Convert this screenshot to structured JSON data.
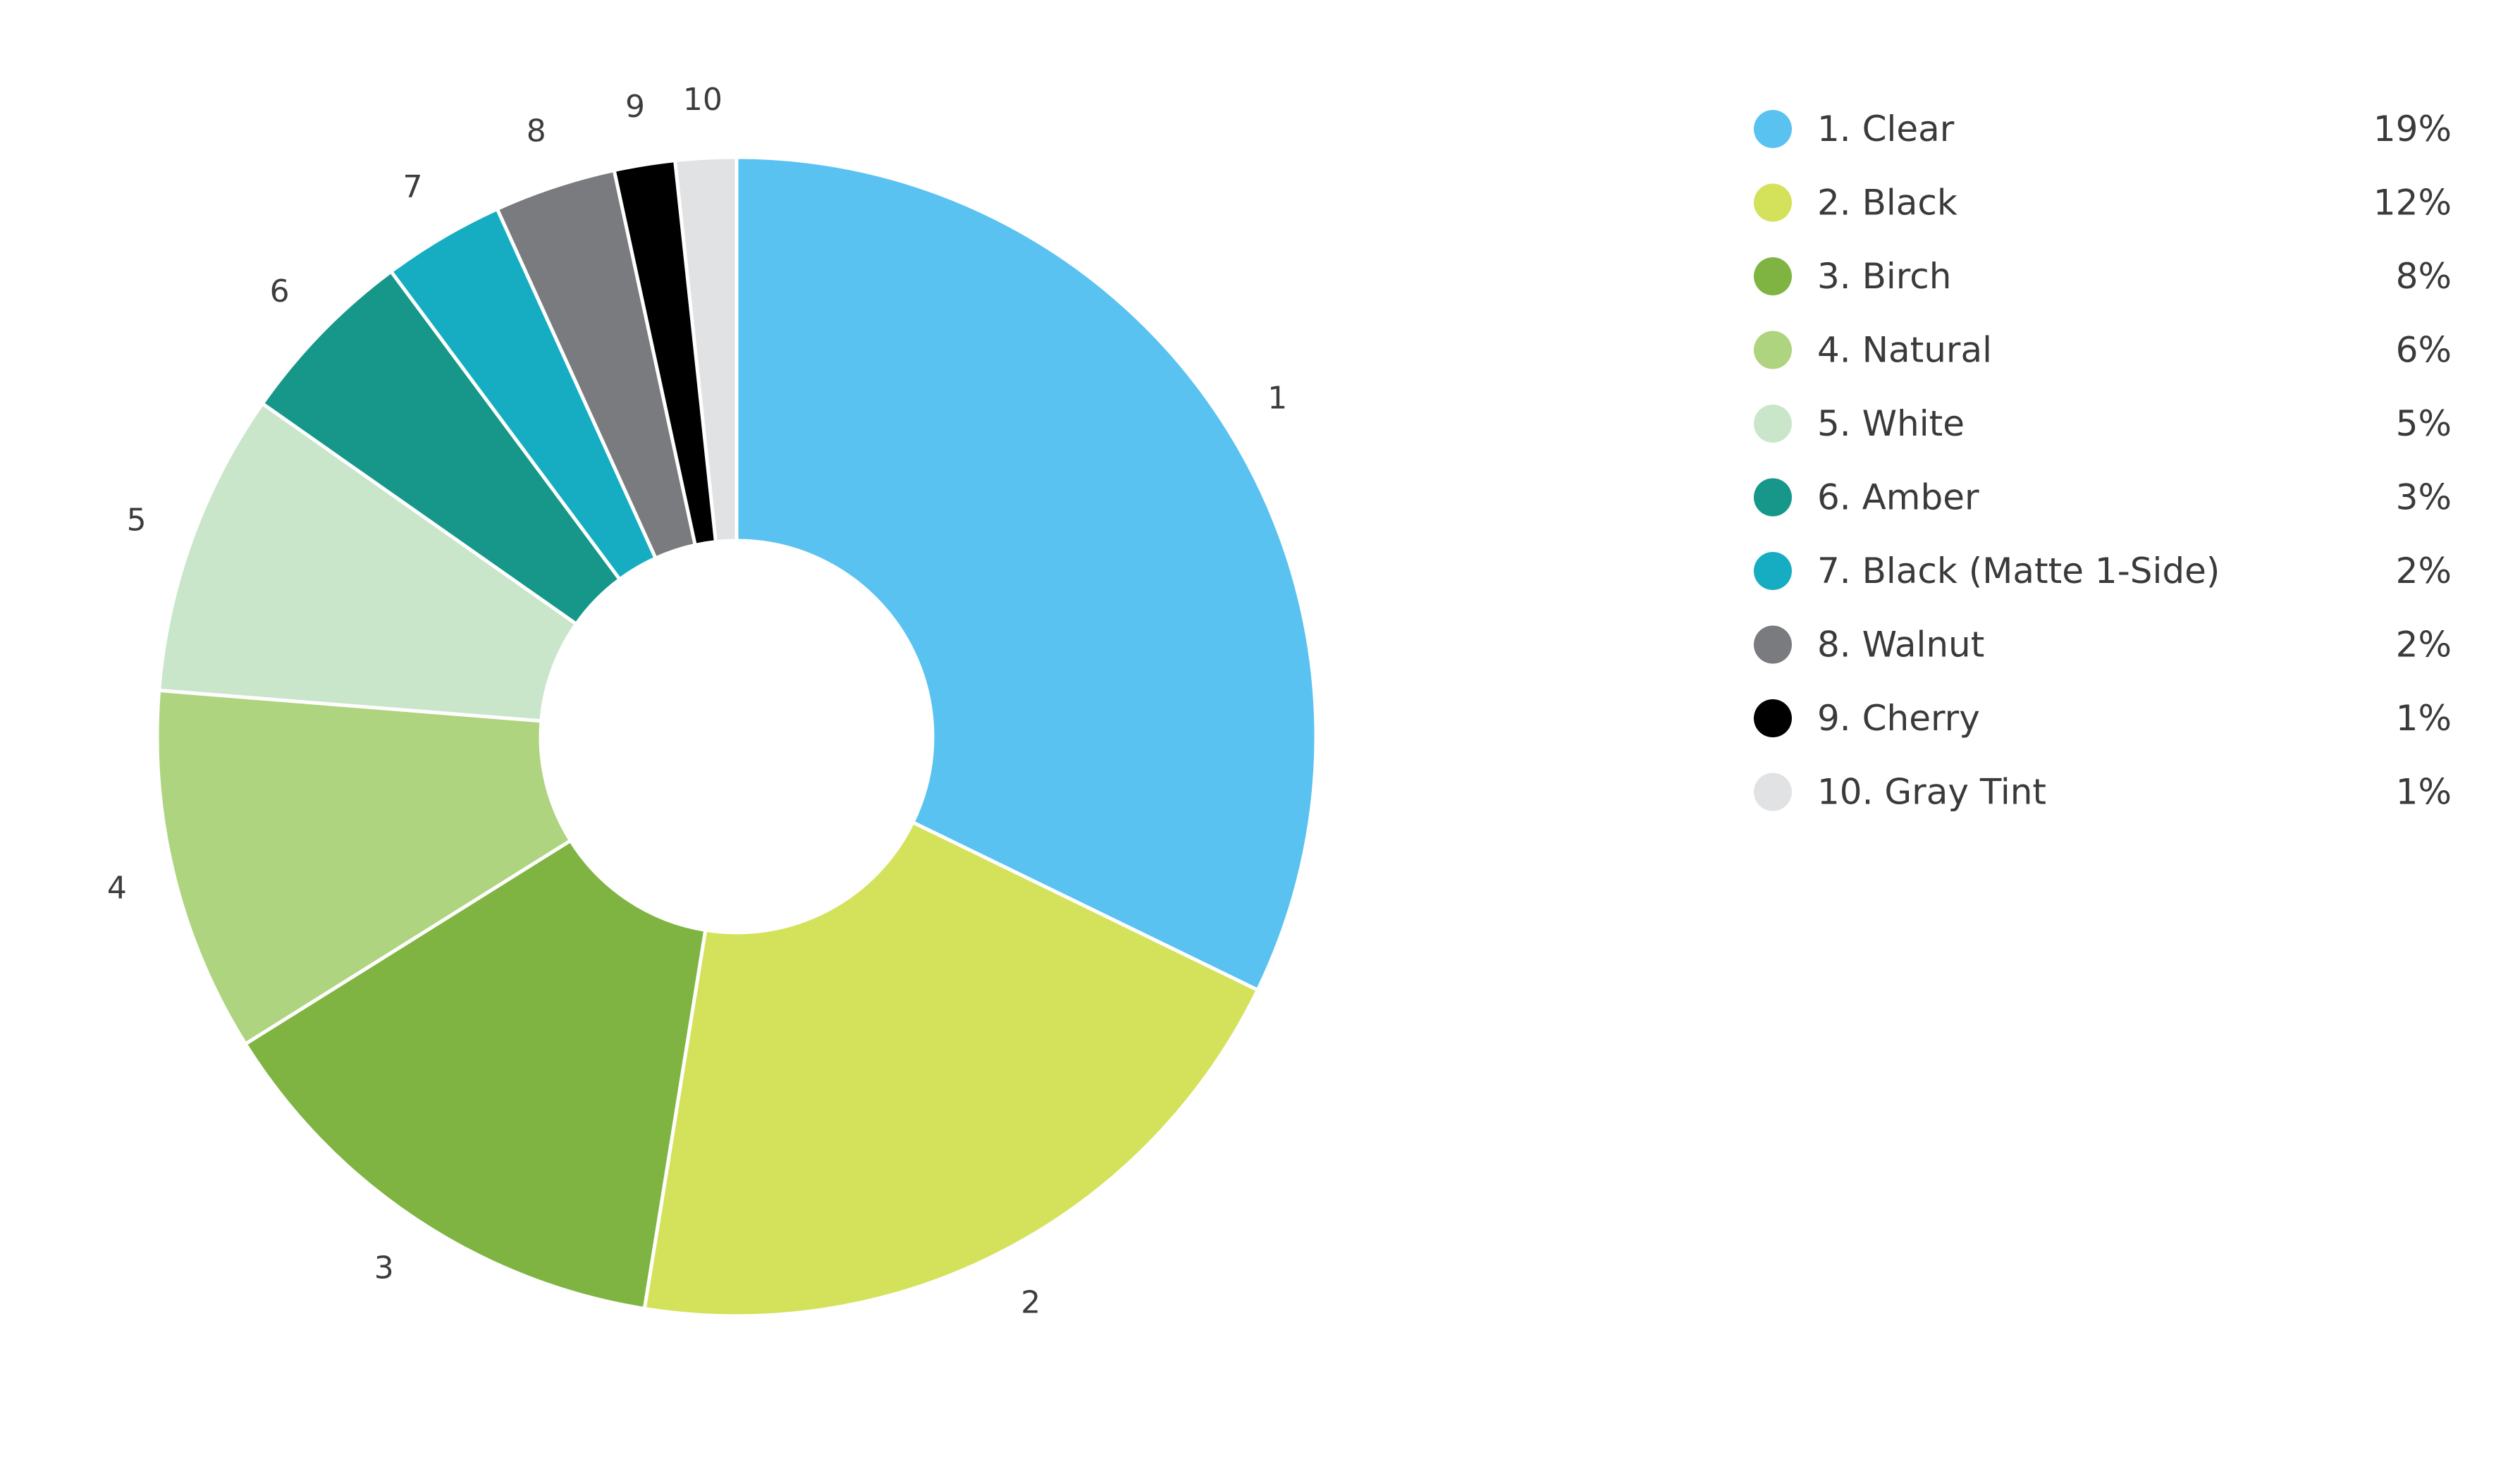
{
  "chart_data": {
    "type": "pie",
    "variant": "donut",
    "legend": "right",
    "slices": [
      {
        "id": "1",
        "label": "1. Clear",
        "value": 19,
        "value_label": "19%",
        "color": "#59c2f1"
      },
      {
        "id": "2",
        "label": "2. Black",
        "value": 12,
        "value_label": "12%",
        "color": "#d4e25b"
      },
      {
        "id": "3",
        "label": "3. Birch",
        "value": 8,
        "value_label": "8%",
        "color": "#7fb443"
      },
      {
        "id": "4",
        "label": "4. Natural",
        "value": 6,
        "value_label": "6%",
        "color": "#aed47f"
      },
      {
        "id": "5",
        "label": "5. White",
        "value": 5,
        "value_label": "5%",
        "color": "#c9e6cb"
      },
      {
        "id": "6",
        "label": "6. Amber",
        "value": 3,
        "value_label": "3%",
        "color": "#169789"
      },
      {
        "id": "7",
        "label": "7. Black (Matte 1-Side)",
        "value": 2,
        "value_label": "2%",
        "color": "#16adc3"
      },
      {
        "id": "8",
        "label": "8. Walnut",
        "value": 2,
        "value_label": "2%",
        "color": "#7a7b7f"
      },
      {
        "id": "9",
        "label": "9. Cherry",
        "value": 1,
        "value_label": "1%",
        "color": "#000000"
      },
      {
        "id": "10",
        "label": "10. Gray Tint",
        "value": 1,
        "value_label": "1%",
        "color": "#e1e2e4"
      }
    ]
  }
}
